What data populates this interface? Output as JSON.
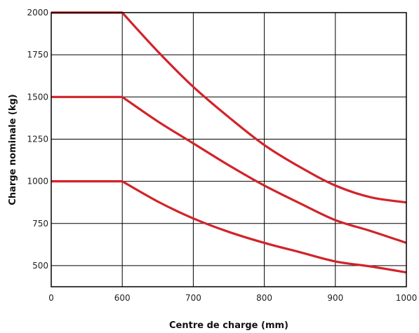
{
  "chart_data": {
    "type": "line",
    "title": "",
    "xlabel": "Centre de charge (mm)",
    "ylabel": "Charge nominale (kg)",
    "x_ticks": [
      0,
      600,
      700,
      800,
      900,
      1000
    ],
    "x_tick_labels": [
      "0",
      "600",
      "700",
      "800",
      "900",
      "1000"
    ],
    "y_ticks": [
      500,
      750,
      1000,
      1250,
      1500,
      1750,
      2000
    ],
    "y_tick_labels": [
      "500",
      "750",
      "1000",
      "1250",
      "1500",
      "1750",
      "2000"
    ],
    "ylim": [
      375,
      2000
    ],
    "grid": true,
    "line_color": "#d2232a",
    "series": [
      {
        "x": [
          0,
          600,
          650,
          700,
          750,
          800,
          850,
          900,
          950,
          1000
        ],
        "y": [
          2000,
          2000,
          1770,
          1560,
          1380,
          1215,
          1085,
          975,
          905,
          875
        ]
      },
      {
        "x": [
          0,
          600,
          650,
          700,
          750,
          800,
          850,
          900,
          950,
          1000
        ],
        "y": [
          1500,
          1500,
          1355,
          1225,
          1095,
          975,
          870,
          770,
          705,
          635
        ]
      },
      {
        "x": [
          0,
          600,
          650,
          700,
          750,
          800,
          850,
          900,
          950,
          1000
        ],
        "y": [
          1000,
          1000,
          880,
          780,
          700,
          635,
          580,
          525,
          495,
          460
        ]
      }
    ]
  }
}
